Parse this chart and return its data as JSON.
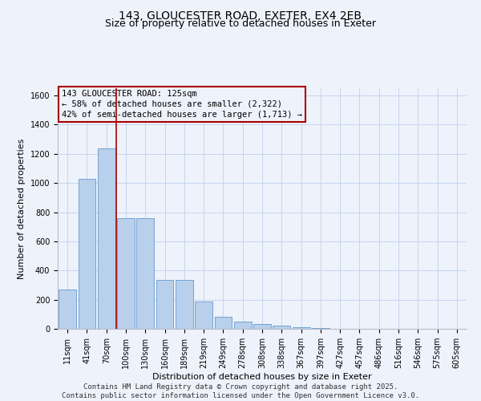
{
  "title_line1": "143, GLOUCESTER ROAD, EXETER, EX4 2EB",
  "title_line2": "Size of property relative to detached houses in Exeter",
  "xlabel": "Distribution of detached houses by size in Exeter",
  "ylabel": "Number of detached properties",
  "bar_color": "#b8d0eb",
  "bar_edge_color": "#6699cc",
  "background_color": "#eef2fb",
  "grid_color": "#c5d5ee",
  "vline_color": "#aa0000",
  "categories": [
    "11sqm",
    "41sqm",
    "70sqm",
    "100sqm",
    "130sqm",
    "160sqm",
    "189sqm",
    "219sqm",
    "249sqm",
    "278sqm",
    "308sqm",
    "338sqm",
    "367sqm",
    "397sqm",
    "427sqm",
    "457sqm",
    "486sqm",
    "516sqm",
    "546sqm",
    "575sqm",
    "605sqm"
  ],
  "values": [
    270,
    1030,
    1240,
    760,
    760,
    335,
    335,
    185,
    80,
    50,
    35,
    20,
    10,
    5,
    2,
    1,
    1,
    0,
    0,
    0,
    0
  ],
  "ylim": [
    0,
    1650
  ],
  "yticks": [
    0,
    200,
    400,
    600,
    800,
    1000,
    1200,
    1400,
    1600
  ],
  "vline_pos": 2.5,
  "annotation_title": "143 GLOUCESTER ROAD: 125sqm",
  "annotation_line2": "← 58% of detached houses are smaller (2,322)",
  "annotation_line3": "42% of semi-detached houses are larger (1,713) →",
  "footer_line1": "Contains HM Land Registry data © Crown copyright and database right 2025.",
  "footer_line2": "Contains public sector information licensed under the Open Government Licence v3.0.",
  "title_fontsize": 10,
  "subtitle_fontsize": 9,
  "axis_label_fontsize": 8,
  "tick_fontsize": 7,
  "annotation_fontsize": 7.5,
  "footer_fontsize": 6.5
}
